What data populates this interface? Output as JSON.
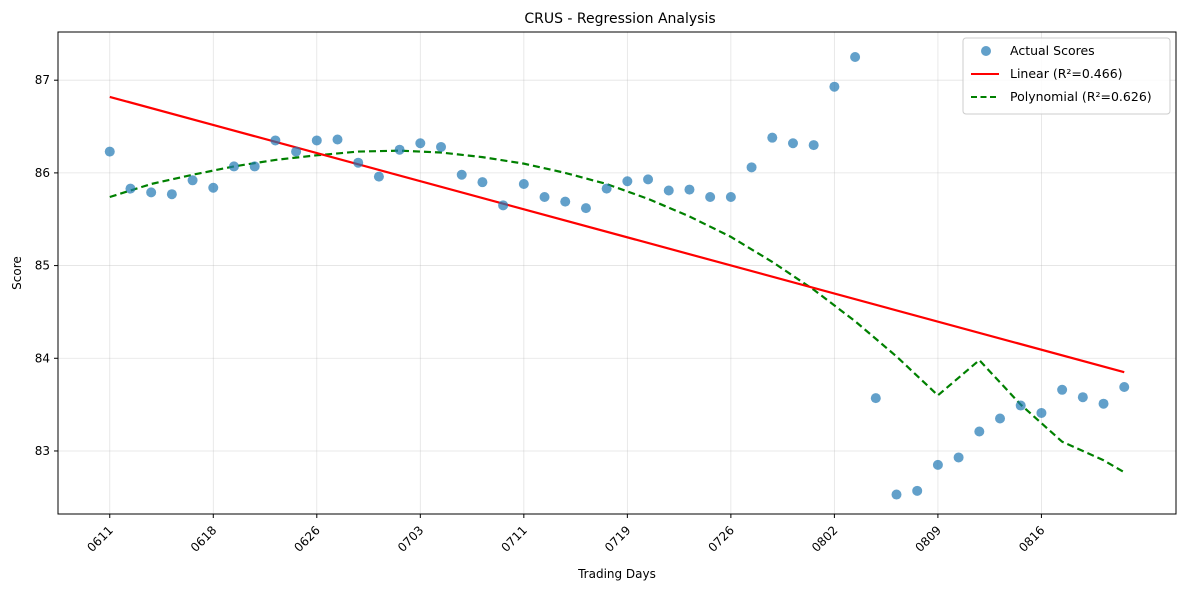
{
  "chart_data": {
    "type": "scatter",
    "title": "CRUS - Regression Analysis",
    "xlabel": "Trading Days",
    "ylabel": "Score",
    "xlim": [
      -2.5,
      51.5
    ],
    "ylim": [
      82.32,
      87.52
    ],
    "grid": true,
    "legend_position": "top-right",
    "x_ticks": [
      {
        "x": 0,
        "label": "0611"
      },
      {
        "x": 5,
        "label": "0618"
      },
      {
        "x": 10,
        "label": "0626"
      },
      {
        "x": 15,
        "label": "0703"
      },
      {
        "x": 20,
        "label": "0711"
      },
      {
        "x": 25,
        "label": "0719"
      },
      {
        "x": 30,
        "label": "0726"
      },
      {
        "x": 35,
        "label": "0802"
      },
      {
        "x": 40,
        "label": "0809"
      },
      {
        "x": 45,
        "label": "0816"
      }
    ],
    "y_ticks": [
      83,
      84,
      85,
      86,
      87
    ],
    "series": [
      {
        "name": "Actual Scores",
        "kind": "scatter",
        "color": "#1f77b4",
        "x": [
          0,
          1,
          2,
          3,
          4,
          5,
          6,
          7,
          8,
          9,
          10,
          11,
          12,
          13,
          14,
          15,
          16,
          17,
          18,
          19,
          20,
          21,
          22,
          23,
          24,
          25,
          26,
          27,
          28,
          29,
          30,
          31,
          32,
          33,
          34,
          35,
          36,
          37,
          38,
          39,
          40,
          41,
          42,
          43,
          44,
          45,
          46,
          47,
          48,
          49
        ],
        "values": [
          86.23,
          85.83,
          85.79,
          85.77,
          85.92,
          85.84,
          86.07,
          86.07,
          86.35,
          86.23,
          86.35,
          86.36,
          86.11,
          85.96,
          86.25,
          86.32,
          86.28,
          85.98,
          85.9,
          85.65,
          85.88,
          85.74,
          85.69,
          85.62,
          85.83,
          85.91,
          85.93,
          85.81,
          85.82,
          85.74,
          85.74,
          86.06,
          86.38,
          86.32,
          86.3,
          86.93,
          87.25,
          83.57,
          82.53,
          82.57,
          82.85,
          82.93,
          83.21,
          83.35,
          83.49,
          83.41,
          83.66,
          83.58,
          83.51,
          83.69
        ]
      },
      {
        "name": "Linear (R²=0.466)",
        "kind": "line",
        "style": "solid",
        "color": "#ff0000",
        "x": [
          0,
          49
        ],
        "values": [
          86.82,
          83.85
        ]
      },
      {
        "name": "Polynomial (R²=0.626)",
        "kind": "line",
        "style": "dashed",
        "color": "#008000",
        "x": [
          0,
          2,
          4,
          6,
          8,
          10,
          12,
          14,
          16,
          18,
          20,
          22,
          24,
          26,
          28,
          30,
          32,
          34,
          36,
          38,
          40,
          42,
          44,
          46,
          48,
          49
        ],
        "values": [
          85.74,
          85.88,
          85.98,
          86.07,
          86.14,
          86.19,
          86.23,
          86.24,
          86.22,
          86.17,
          86.1,
          86.0,
          85.88,
          85.72,
          85.53,
          85.31,
          85.04,
          84.74,
          84.4,
          84.02,
          83.6,
          83.98,
          83.5,
          83.1,
          82.9,
          82.77
        ]
      }
    ]
  }
}
